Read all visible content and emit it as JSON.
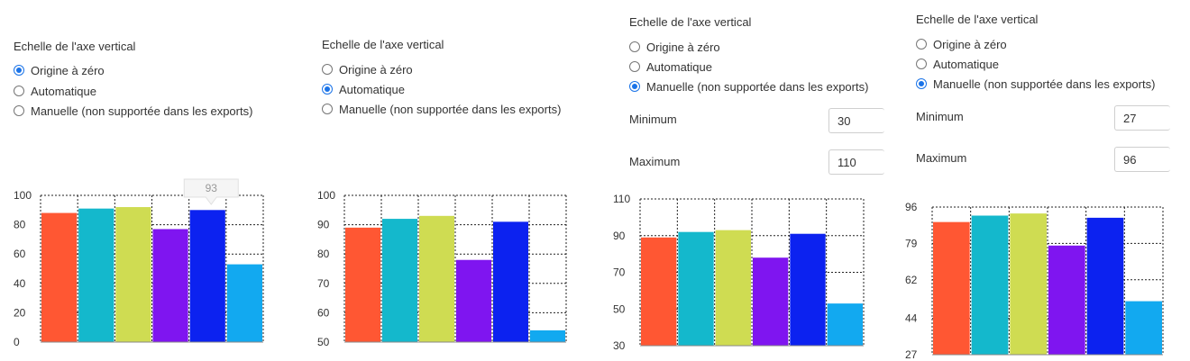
{
  "panels": [
    {
      "section_title": "Echelle de l'axe vertical",
      "options": [
        {
          "label": "Origine à zéro",
          "checked": true
        },
        {
          "label": "Automatique",
          "checked": false
        },
        {
          "label": "Manuelle (non supportée dans les exports)",
          "checked": false
        }
      ]
    },
    {
      "section_title": "Echelle de l'axe vertical",
      "options": [
        {
          "label": "Origine à zéro",
          "checked": false
        },
        {
          "label": "Automatique",
          "checked": true
        },
        {
          "label": "Manuelle (non supportée dans les exports)",
          "checked": false
        }
      ]
    },
    {
      "section_title": "Echelle de l'axe vertical",
      "options": [
        {
          "label": "Origine à zéro",
          "checked": false
        },
        {
          "label": "Automatique",
          "checked": false
        },
        {
          "label": "Manuelle (non supportée dans les exports)",
          "checked": true
        }
      ],
      "minimum_label": "Minimum",
      "minimum_value": "30",
      "maximum_label": "Maximum",
      "maximum_value": "110"
    },
    {
      "section_title": "Echelle de l'axe vertical",
      "options": [
        {
          "label": "Origine à zéro",
          "checked": false
        },
        {
          "label": "Automatique",
          "checked": false
        },
        {
          "label": "Manuelle (non supportée dans les exports)",
          "checked": true
        }
      ],
      "minimum_label": "Minimum",
      "minimum_value": "27",
      "maximum_label": "Maximum",
      "maximum_value": "96"
    }
  ],
  "chart_data": [
    {
      "type": "bar",
      "values": [
        88,
        91,
        92,
        77,
        90,
        53
      ],
      "ylim": [
        0,
        100
      ],
      "yticks": [
        0,
        20,
        40,
        60,
        80,
        100
      ],
      "grid": true,
      "tooltip": "93"
    },
    {
      "type": "bar",
      "values": [
        89,
        92,
        93,
        78,
        91,
        54
      ],
      "ylim": [
        50,
        100
      ],
      "yticks": [
        50,
        60,
        70,
        80,
        90,
        100
      ],
      "grid": true
    },
    {
      "type": "bar",
      "values": [
        89,
        92,
        93,
        78,
        91,
        53
      ],
      "ylim": [
        30,
        110
      ],
      "yticks": [
        30,
        50,
        70,
        90,
        110
      ],
      "grid": true
    },
    {
      "type": "bar",
      "values": [
        89,
        92,
        93,
        78,
        91,
        52
      ],
      "ylim": [
        27,
        96
      ],
      "yticks": [
        27,
        44,
        62,
        79,
        96
      ],
      "grid": true
    }
  ],
  "colors": [
    "#ff5733",
    "#14b8cc",
    "#cfdc52",
    "#7f15f0",
    "#0c22f0",
    "#12a9f0"
  ]
}
